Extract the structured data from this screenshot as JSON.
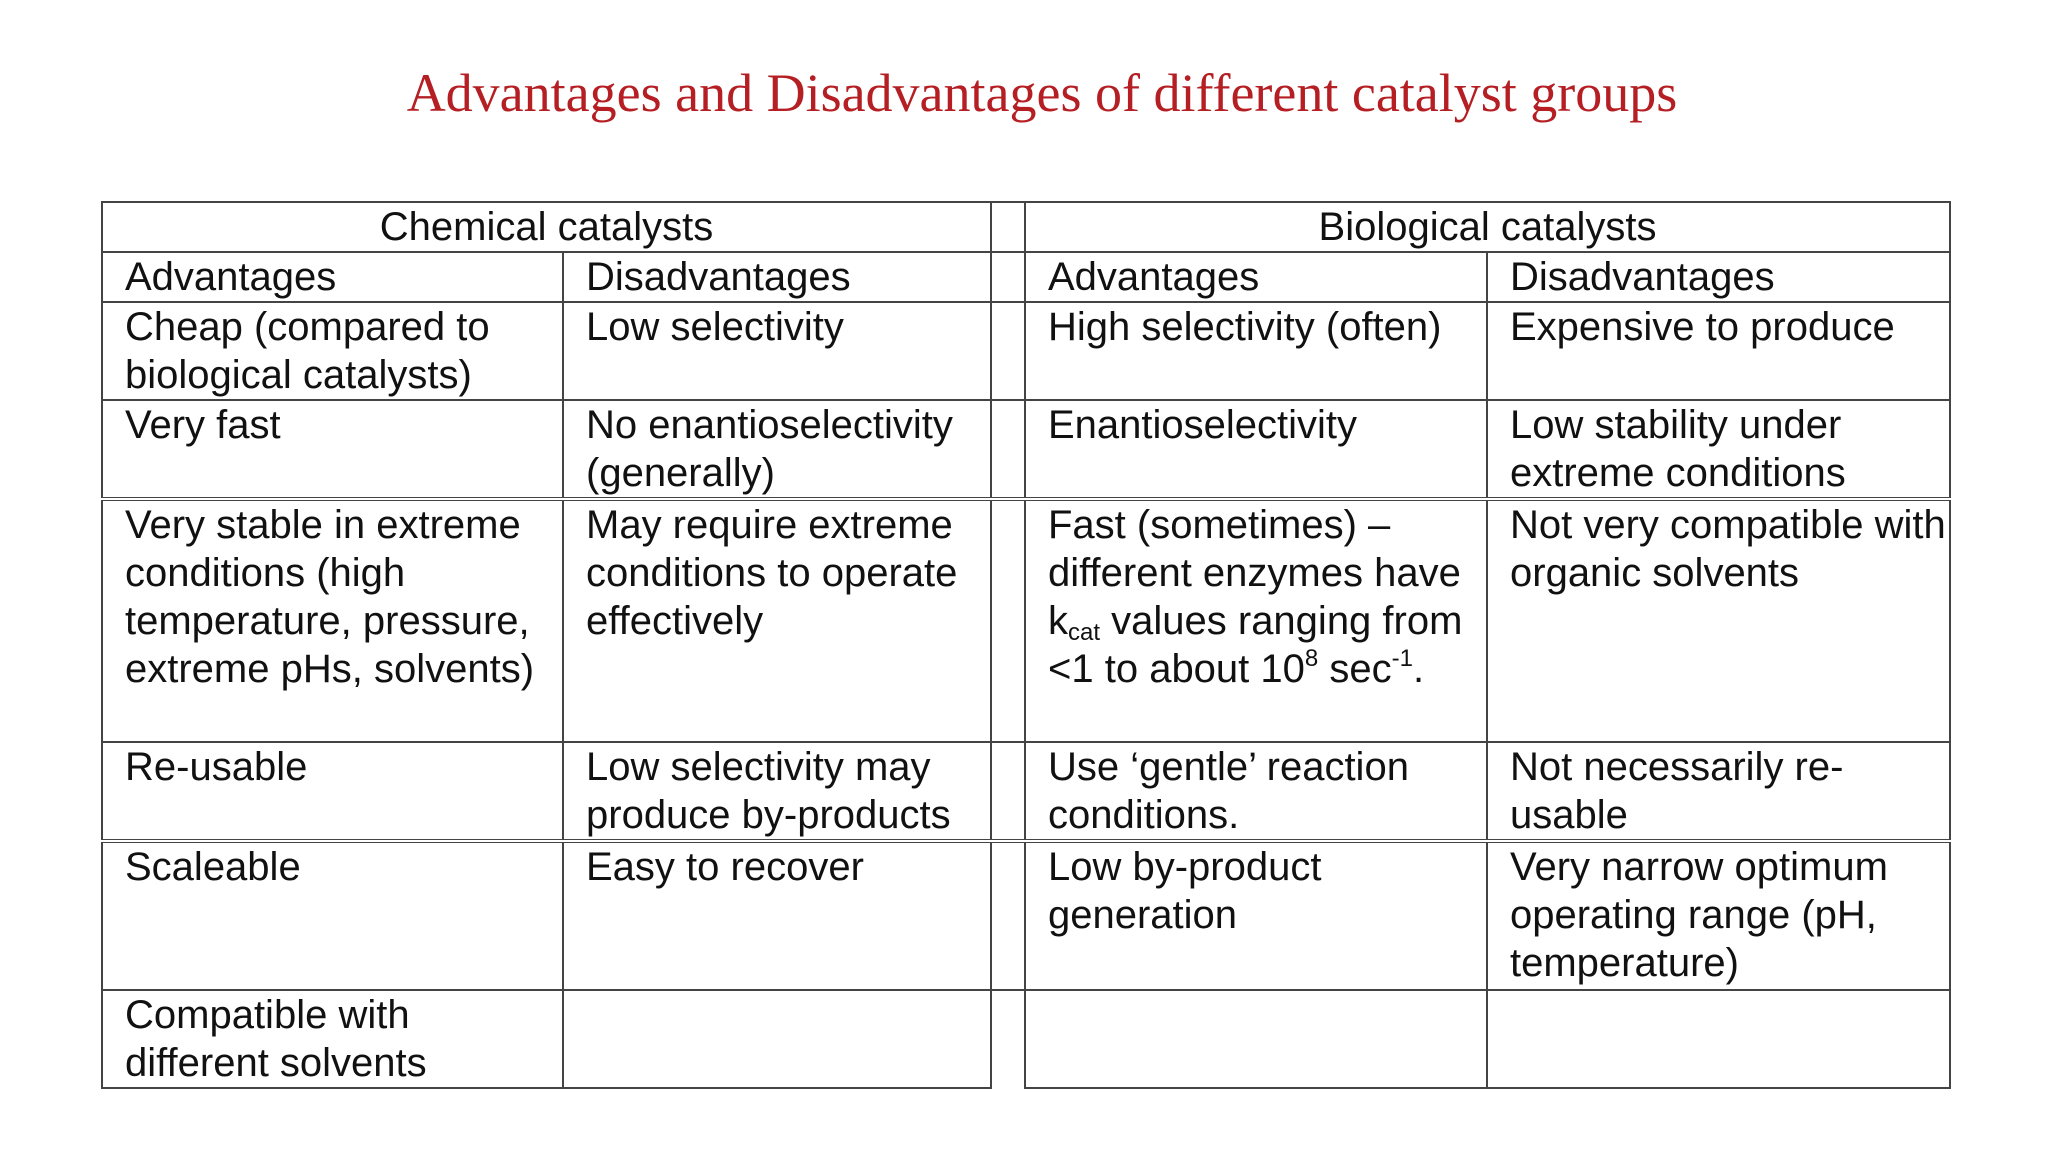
{
  "title": "Advantages and Disadvantages of different catalyst groups",
  "groups": {
    "chemical": "Chemical catalysts",
    "biological": "Biological catalysts"
  },
  "subheaders": {
    "chem_adv": "Advantages",
    "chem_dis": "Disadvantages",
    "bio_adv": "Advantages",
    "bio_dis": "Disadvantages"
  },
  "rows": [
    {
      "chem_adv": "Cheap (compared to biological catalysts)",
      "chem_dis": "Low selectivity",
      "bio_adv": "High selectivity (often)",
      "bio_dis": "Expensive to produce"
    },
    {
      "chem_adv": "Very fast",
      "chem_dis": "No enantioselectivity (generally)",
      "bio_adv": "Enantioselectivity",
      "bio_dis": "Low stability under extreme conditions"
    },
    {
      "chem_adv": "Very stable in extreme conditions (high temperature, pressure, extreme pHs, solvents)",
      "chem_dis": "May require extreme conditions to operate effectively",
      "bio_adv": {
        "part1": "Fast (sometimes) – different enzymes have k",
        "sub": "cat",
        "part2": " values ranging from <1 to about 10",
        "sup1": "8",
        "part3": " sec",
        "sup2": "-1",
        "part4": "."
      },
      "bio_dis": "Not very compatible with organic solvents"
    },
    {
      "chem_adv": "Re-usable",
      "chem_dis": "Low selectivity may produce by-products",
      "bio_adv": "Use ‘gentle’ reaction conditions.",
      "bio_dis": "Not necessarily re-usable"
    },
    {
      "chem_adv": "Scaleable",
      "chem_dis": "Easy to recover",
      "bio_adv": "Low by-product generation",
      "bio_dis": "Very narrow optimum operating range (pH, temperature)"
    },
    {
      "chem_adv": "Compatible with different solvents",
      "chem_dis": "",
      "bio_adv": "",
      "bio_dis": ""
    }
  ]
}
